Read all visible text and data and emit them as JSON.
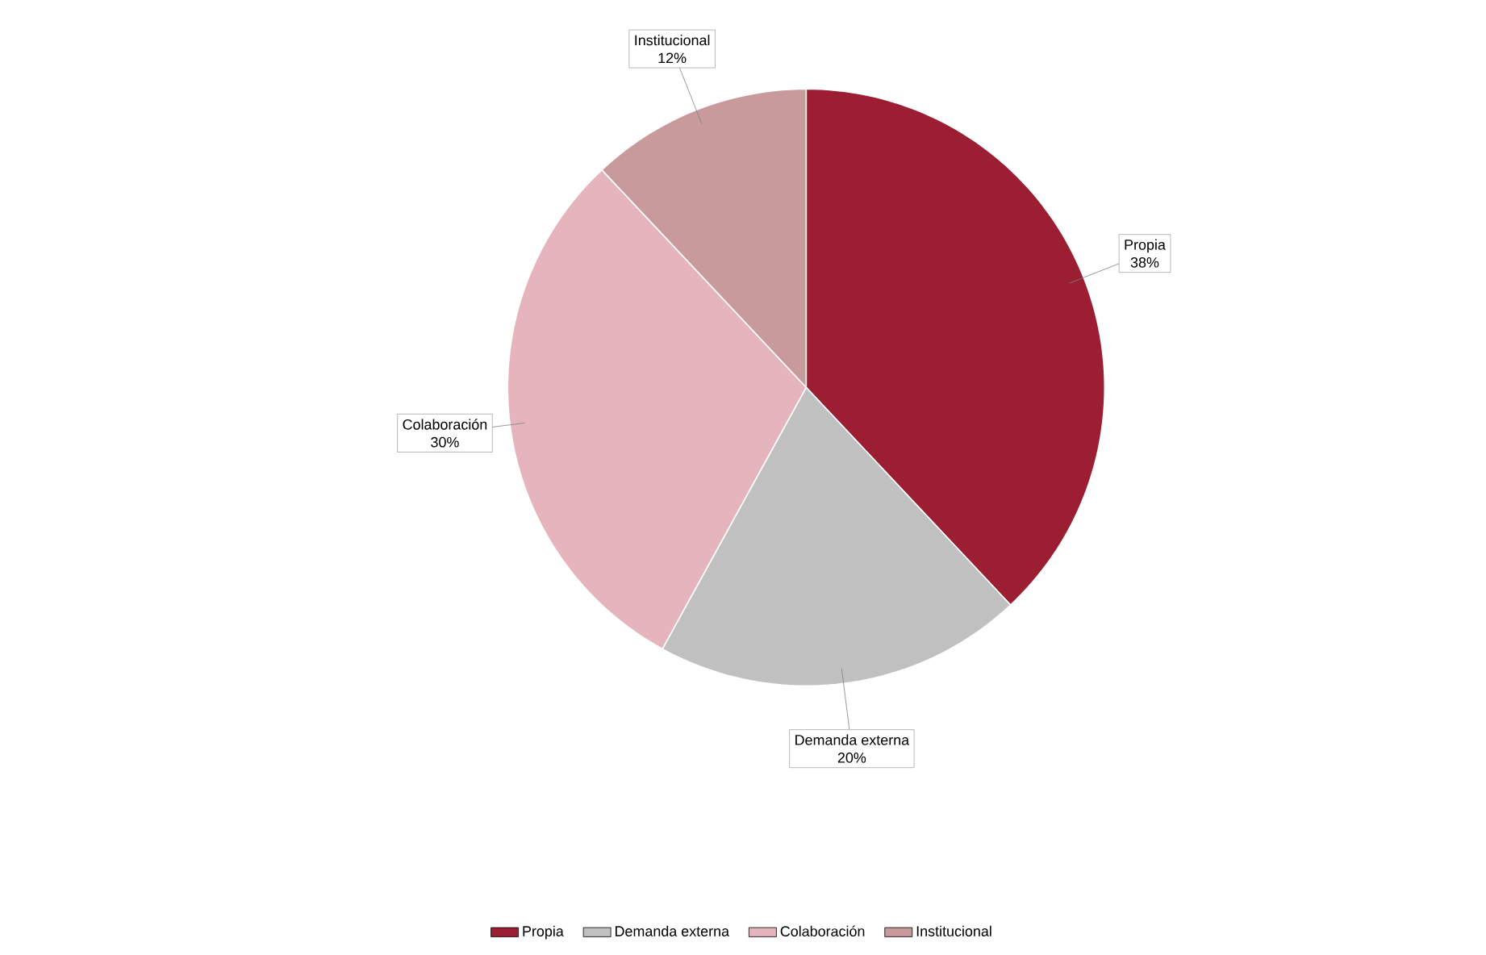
{
  "chart_data": {
    "type": "pie",
    "categories": [
      "Propia",
      "Demanda externa",
      "Colaboración",
      "Institucional"
    ],
    "values": [
      38,
      20,
      30,
      12
    ],
    "value_labels": [
      "38%",
      "20%",
      "30%",
      "12%"
    ],
    "colors": [
      "#9b1e32",
      "#c0c0c0",
      "#e6b4bc",
      "#c89a9c"
    ],
    "legend": "bottom"
  }
}
